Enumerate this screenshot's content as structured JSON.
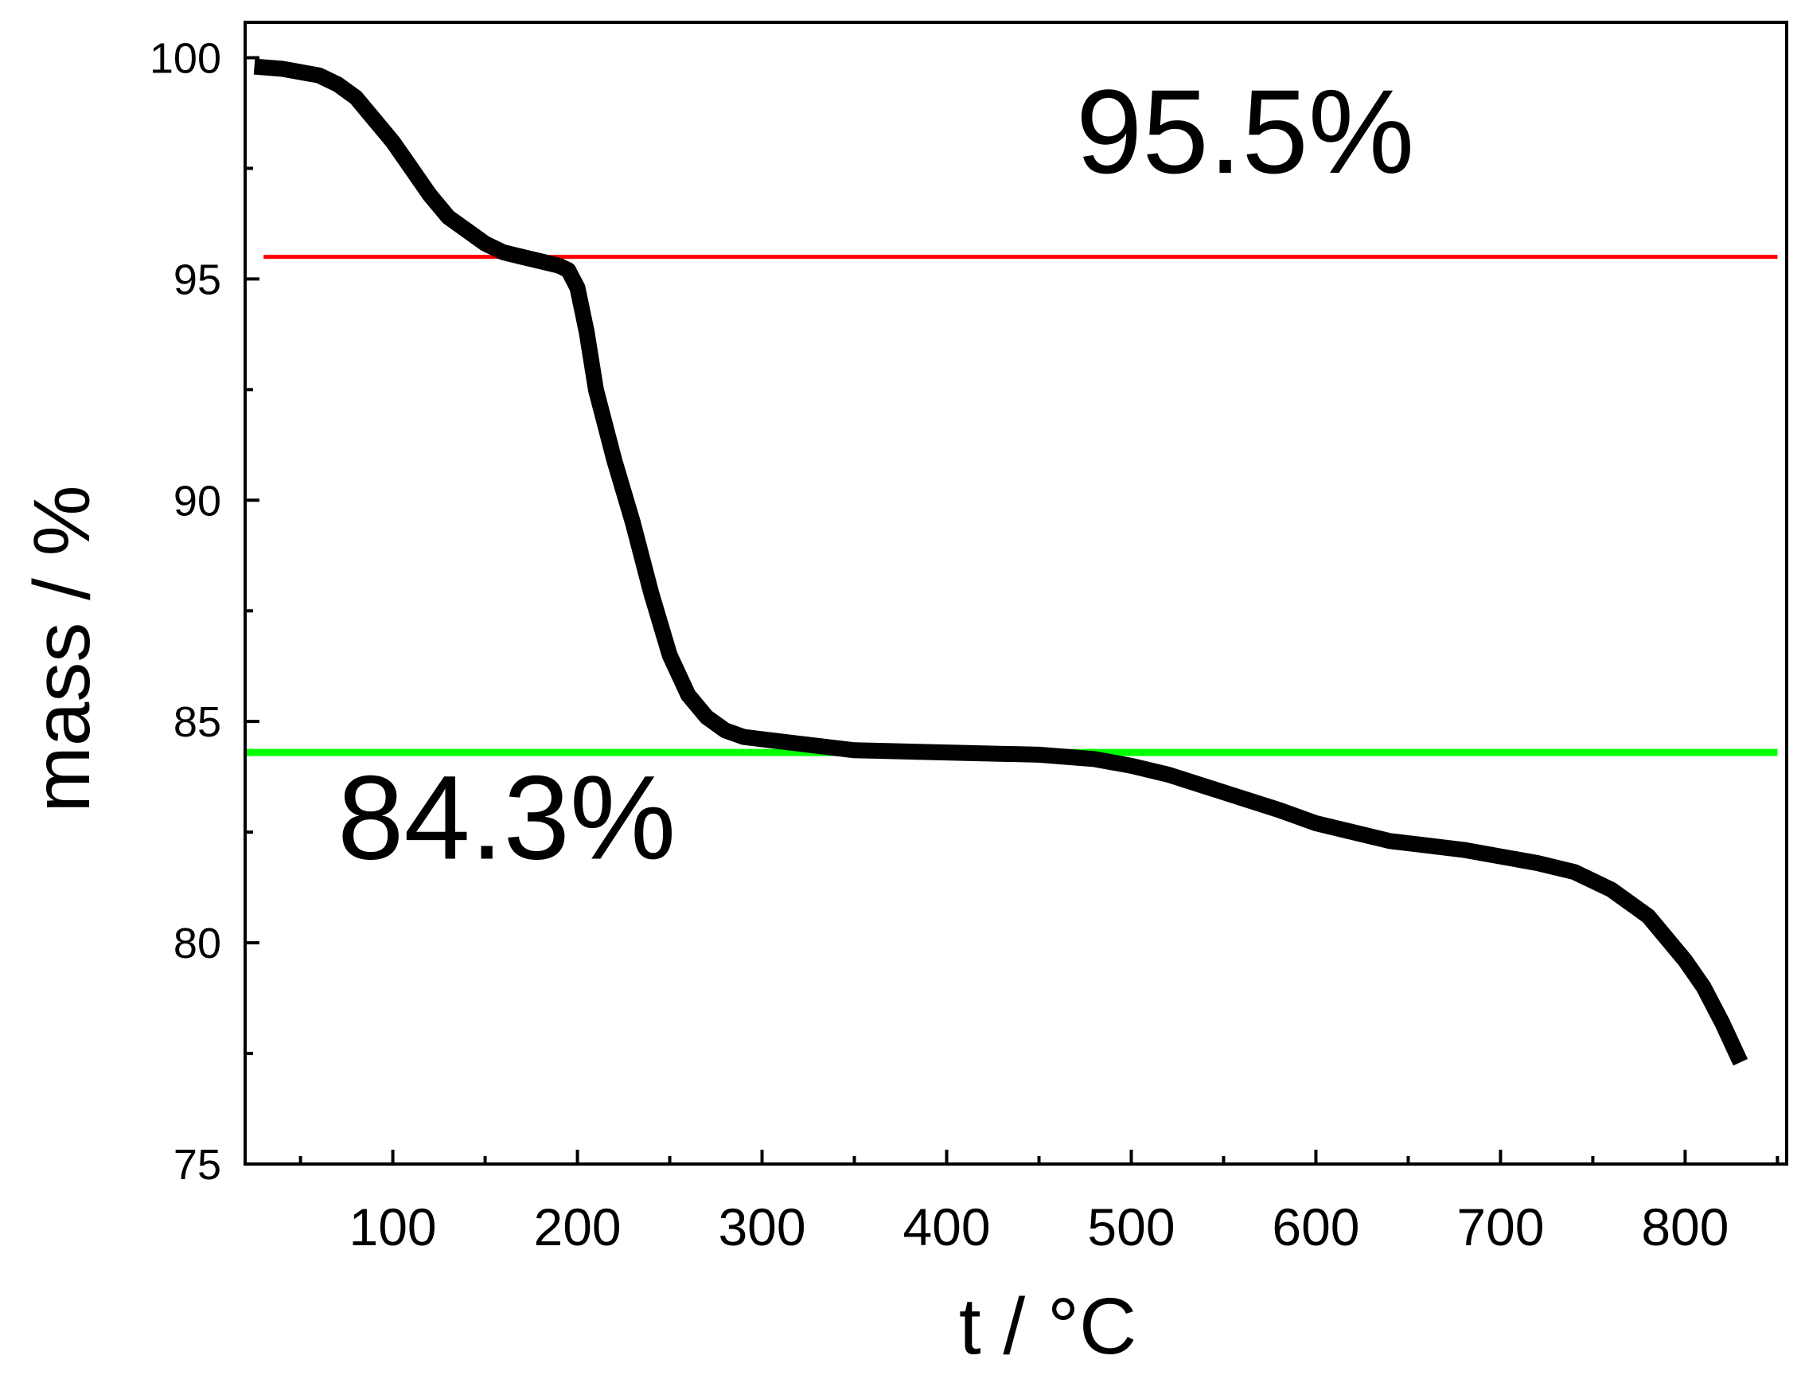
{
  "chart_data": {
    "type": "line",
    "title": "",
    "xlabel": "t / °C",
    "ylabel": "mass / %",
    "xlim": [
      20,
      855
    ],
    "ylim": [
      75,
      100.8
    ],
    "x_ticks_major": [
      100,
      200,
      300,
      400,
      500,
      600,
      700,
      800
    ],
    "x_ticks_minor": [
      50,
      150,
      250,
      350,
      450,
      550,
      650,
      750,
      850
    ],
    "y_ticks_major": [
      75,
      80,
      85,
      90,
      95,
      100
    ],
    "y_ticks_minor": [
      77.5,
      82.5,
      87.5,
      92.5,
      97.5
    ],
    "grid": false,
    "legend": "none",
    "series": [
      {
        "color": "#000000",
        "x": [
          25,
          40,
          60,
          70,
          80,
          90,
          100,
          110,
          120,
          130,
          140,
          150,
          160,
          170,
          180,
          190,
          195,
          200,
          205,
          210,
          220,
          230,
          240,
          250,
          260,
          270,
          280,
          290,
          300,
          320,
          350,
          400,
          450,
          480,
          500,
          520,
          550,
          580,
          600,
          620,
          640,
          660,
          680,
          700,
          720,
          740,
          760,
          780,
          800,
          810,
          820,
          830
        ],
        "y": [
          99.8,
          99.75,
          99.6,
          99.4,
          99.1,
          98.6,
          98.1,
          97.5,
          96.9,
          96.4,
          96.1,
          95.8,
          95.6,
          95.5,
          95.4,
          95.3,
          95.2,
          94.8,
          93.8,
          92.5,
          90.9,
          89.5,
          87.9,
          86.5,
          85.6,
          85.1,
          84.8,
          84.65,
          84.6,
          84.5,
          84.35,
          84.3,
          84.25,
          84.15,
          84.0,
          83.8,
          83.4,
          83.0,
          82.7,
          82.5,
          82.3,
          82.2,
          82.1,
          81.95,
          81.8,
          81.6,
          81.2,
          80.6,
          79.6,
          79.0,
          78.2,
          77.3
        ]
      }
    ],
    "reference_lines": [
      {
        "y": 95.5,
        "color": "#ff0000",
        "x_start": 30,
        "x_end": 850
      },
      {
        "y": 84.3,
        "color": "#00ff00",
        "x_start": 20,
        "x_end": 850
      }
    ],
    "annotations": [
      {
        "text": "95.5%",
        "x": 470,
        "y": 97.4
      },
      {
        "text": "84.3%",
        "x": 70,
        "y": 81.9
      }
    ]
  }
}
